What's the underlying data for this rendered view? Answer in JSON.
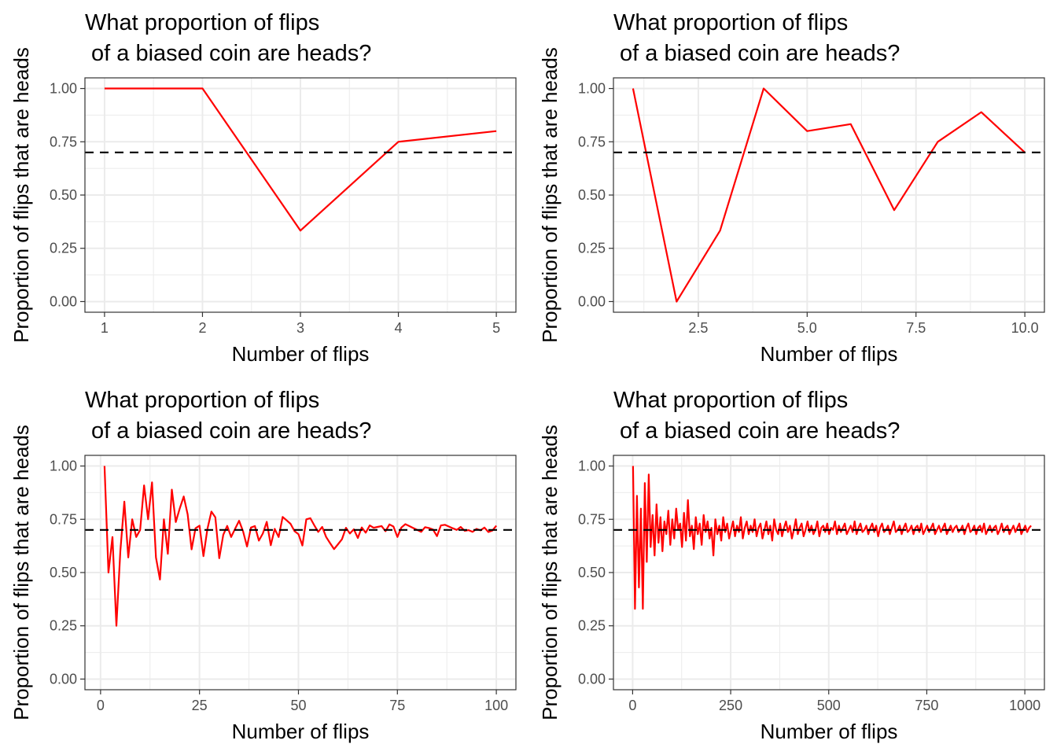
{
  "chart_data": [
    {
      "type": "line",
      "title_line1": "What proportion of flips",
      "title_line2": " of a biased coin are heads?",
      "xlabel": "Number of flips",
      "ylabel": "Proportion of flips that are heads",
      "xlim": [
        0.8,
        5.2
      ],
      "ylim": [
        -0.05,
        1.05
      ],
      "xticks": [
        1,
        2,
        3,
        4,
        5
      ],
      "xtick_labels": [
        "1",
        "2",
        "3",
        "4",
        "5"
      ],
      "yticks": [
        0,
        0.25,
        0.5,
        0.75,
        1
      ],
      "ytick_labels": [
        "0.00",
        "0.25",
        "0.50",
        "0.75",
        "1.00"
      ],
      "reference_line": 0.7,
      "line_color": "#ff0000",
      "x": [
        1,
        2,
        3,
        4,
        5
      ],
      "y": [
        1.0,
        1.0,
        0.333,
        0.75,
        0.8
      ]
    },
    {
      "type": "line",
      "title_line1": "What proportion of flips",
      "title_line2": " of a biased coin are heads?",
      "xlabel": "Number of flips",
      "ylabel": "Proportion of flips that are heads",
      "xlim": [
        0.55,
        10.45
      ],
      "ylim": [
        -0.05,
        1.05
      ],
      "xticks": [
        2.5,
        5,
        7.5,
        10
      ],
      "xtick_labels": [
        "2.5",
        "5.0",
        "7.5",
        "10.0"
      ],
      "yticks": [
        0,
        0.25,
        0.5,
        0.75,
        1
      ],
      "ytick_labels": [
        "0.00",
        "0.25",
        "0.50",
        "0.75",
        "1.00"
      ],
      "reference_line": 0.7,
      "line_color": "#ff0000",
      "x": [
        1,
        2,
        3,
        4,
        5,
        6,
        7,
        8,
        9,
        10
      ],
      "y": [
        1.0,
        0.0,
        0.333,
        1.0,
        0.8,
        0.833,
        0.429,
        0.75,
        0.889,
        0.7
      ]
    },
    {
      "type": "line",
      "title_line1": "What proportion of flips",
      "title_line2": " of a biased coin are heads?",
      "xlabel": "Number of flips",
      "ylabel": "Proportion of flips that are heads",
      "xlim": [
        -3.95,
        104.95
      ],
      "ylim": [
        -0.05,
        1.05
      ],
      "xticks": [
        0,
        25,
        50,
        75,
        100
      ],
      "xtick_labels": [
        "0",
        "25",
        "50",
        "75",
        "100"
      ],
      "yticks": [
        0,
        0.25,
        0.5,
        0.75,
        1
      ],
      "ytick_labels": [
        "0.00",
        "0.25",
        "0.50",
        "0.75",
        "1.00"
      ],
      "reference_line": 0.7,
      "line_color": "#ff0000",
      "x": [
        1,
        2,
        3,
        4,
        5,
        6,
        7,
        8,
        9,
        10,
        11,
        12,
        13,
        14,
        15,
        16,
        17,
        18,
        19,
        20,
        21,
        22,
        23,
        24,
        25,
        26,
        27,
        28,
        29,
        30,
        31,
        32,
        33,
        34,
        35,
        36,
        37,
        38,
        39,
        40,
        41,
        42,
        43,
        44,
        45,
        46,
        47,
        48,
        49,
        50,
        51,
        52,
        53,
        54,
        55,
        56,
        57,
        58,
        59,
        60,
        61,
        62,
        63,
        64,
        65,
        66,
        67,
        68,
        69,
        70,
        71,
        72,
        73,
        74,
        75,
        76,
        77,
        78,
        79,
        80,
        81,
        82,
        83,
        84,
        85,
        86,
        87,
        88,
        89,
        90,
        91,
        92,
        93,
        94,
        95,
        96,
        97,
        98,
        99,
        100
      ],
      "y": [
        1.0,
        0.5,
        0.667,
        0.25,
        0.6,
        0.833,
        0.571,
        0.75,
        0.667,
        0.7,
        0.909,
        0.75,
        0.923,
        0.571,
        0.467,
        0.75,
        0.588,
        0.889,
        0.737,
        0.8,
        0.857,
        0.773,
        0.609,
        0.708,
        0.72,
        0.577,
        0.704,
        0.786,
        0.759,
        0.567,
        0.677,
        0.719,
        0.667,
        0.706,
        0.743,
        0.694,
        0.622,
        0.711,
        0.718,
        0.65,
        0.683,
        0.738,
        0.628,
        0.705,
        0.667,
        0.761,
        0.745,
        0.729,
        0.694,
        0.68,
        0.627,
        0.75,
        0.755,
        0.722,
        0.691,
        0.714,
        0.667,
        0.638,
        0.61,
        0.633,
        0.656,
        0.71,
        0.683,
        0.703,
        0.662,
        0.712,
        0.687,
        0.721,
        0.71,
        0.714,
        0.718,
        0.694,
        0.726,
        0.716,
        0.667,
        0.711,
        0.727,
        0.718,
        0.709,
        0.7,
        0.691,
        0.713,
        0.709,
        0.702,
        0.671,
        0.721,
        0.724,
        0.716,
        0.708,
        0.7,
        0.714,
        0.696,
        0.699,
        0.691,
        0.705,
        0.698,
        0.711,
        0.69,
        0.697,
        0.72
      ]
    },
    {
      "type": "line",
      "title_line1": "What proportion of flips",
      "title_line2": " of a biased coin are heads?",
      "xlabel": "Number of flips",
      "ylabel": "Proportion of flips that are heads",
      "xlim": [
        -48.95,
        1049.95
      ],
      "ylim": [
        -0.05,
        1.05
      ],
      "xticks": [
        0,
        250,
        500,
        750,
        1000
      ],
      "xtick_labels": [
        "0",
        "250",
        "500",
        "750",
        "1000"
      ],
      "yticks": [
        0,
        0.25,
        0.5,
        0.75,
        1
      ],
      "ytick_labels": [
        "0.00",
        "0.25",
        "0.50",
        "0.75",
        "1.00"
      ],
      "reference_line": 0.7,
      "line_color": "#ff0000",
      "x_start": 1,
      "x_step": 5,
      "y": [
        1.0,
        0.33,
        0.86,
        0.43,
        0.8,
        0.33,
        0.92,
        0.55,
        0.96,
        0.62,
        0.77,
        0.58,
        0.82,
        0.64,
        0.76,
        0.6,
        0.74,
        0.68,
        0.79,
        0.63,
        0.75,
        0.66,
        0.8,
        0.7,
        0.73,
        0.62,
        0.78,
        0.65,
        0.84,
        0.67,
        0.72,
        0.61,
        0.76,
        0.68,
        0.73,
        0.63,
        0.77,
        0.69,
        0.74,
        0.66,
        0.71,
        0.58,
        0.75,
        0.68,
        0.72,
        0.65,
        0.76,
        0.69,
        0.73,
        0.66,
        0.7,
        0.74,
        0.67,
        0.72,
        0.69,
        0.76,
        0.66,
        0.71,
        0.74,
        0.68,
        0.72,
        0.69,
        0.75,
        0.67,
        0.71,
        0.73,
        0.66,
        0.7,
        0.74,
        0.68,
        0.72,
        0.65,
        0.75,
        0.7,
        0.68,
        0.73,
        0.67,
        0.71,
        0.74,
        0.69,
        0.72,
        0.66,
        0.7,
        0.75,
        0.68,
        0.71,
        0.73,
        0.67,
        0.7,
        0.74,
        0.69,
        0.72,
        0.68,
        0.7,
        0.74,
        0.67,
        0.71,
        0.72,
        0.69,
        0.73,
        0.68,
        0.71,
        0.7,
        0.74,
        0.68,
        0.72,
        0.69,
        0.71,
        0.73,
        0.68,
        0.7,
        0.72,
        0.69,
        0.74,
        0.68,
        0.71,
        0.73,
        0.69,
        0.7,
        0.72,
        0.68,
        0.71,
        0.73,
        0.69,
        0.72,
        0.67,
        0.71,
        0.73,
        0.69,
        0.7,
        0.72,
        0.68,
        0.71,
        0.74,
        0.69,
        0.7,
        0.72,
        0.68,
        0.71,
        0.73,
        0.69,
        0.7,
        0.72,
        0.68,
        0.71,
        0.72,
        0.69,
        0.73,
        0.68,
        0.7,
        0.72,
        0.69,
        0.71,
        0.73,
        0.68,
        0.7,
        0.72,
        0.69,
        0.71,
        0.73,
        0.68,
        0.7,
        0.72,
        0.69,
        0.71,
        0.72,
        0.69,
        0.7,
        0.72,
        0.68,
        0.71,
        0.73,
        0.69,
        0.7,
        0.72,
        0.68,
        0.71,
        0.72,
        0.69,
        0.73,
        0.68,
        0.7,
        0.72,
        0.69,
        0.71,
        0.72,
        0.68,
        0.7,
        0.73,
        0.69,
        0.71,
        0.72,
        0.68,
        0.7,
        0.72,
        0.69,
        0.71,
        0.73,
        0.68,
        0.7,
        0.72,
        0.69,
        0.71,
        0.72
      ]
    }
  ]
}
